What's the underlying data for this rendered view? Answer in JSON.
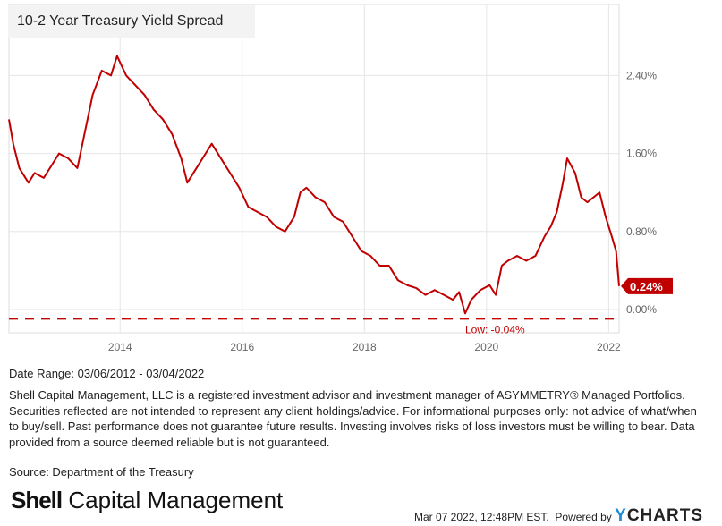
{
  "chart_data": {
    "type": "line",
    "title": "10-2 Year Treasury Yield Spread",
    "x_ticks": [
      "2014",
      "2016",
      "2018",
      "2020",
      "2022"
    ],
    "y_ticks": [
      "0.00%",
      "0.80%",
      "1.60%",
      "2.40%"
    ],
    "ylim": [
      -0.2,
      3.1
    ],
    "xlim": [
      2012.18,
      2022.17
    ],
    "grid": true,
    "series": [
      {
        "color": "#c00000",
        "x": [
          2012.18,
          2012.25,
          2012.35,
          2012.5,
          2012.6,
          2012.75,
          2012.9,
          2013.0,
          2013.15,
          2013.3,
          2013.45,
          2013.55,
          2013.7,
          2013.85,
          2013.95,
          2014.1,
          2014.25,
          2014.4,
          2014.55,
          2014.7,
          2014.85,
          2015.0,
          2015.1,
          2015.25,
          2015.4,
          2015.5,
          2015.65,
          2015.8,
          2015.95,
          2016.1,
          2016.25,
          2016.4,
          2016.55,
          2016.7,
          2016.85,
          2016.95,
          2017.05,
          2017.2,
          2017.35,
          2017.5,
          2017.65,
          2017.8,
          2017.95,
          2018.1,
          2018.25,
          2018.4,
          2018.55,
          2018.7,
          2018.85,
          2019.0,
          2019.15,
          2019.3,
          2019.45,
          2019.55,
          2019.65,
          2019.75,
          2019.9,
          2020.05,
          2020.15,
          2020.25,
          2020.35,
          2020.5,
          2020.65,
          2020.8,
          2020.95,
          2021.05,
          2021.15,
          2021.25,
          2021.32,
          2021.45,
          2021.55,
          2021.65,
          2021.75,
          2021.85,
          2021.95,
          2022.05,
          2022.12,
          2022.17
        ],
        "y": [
          1.95,
          1.7,
          1.45,
          1.3,
          1.4,
          1.35,
          1.5,
          1.6,
          1.55,
          1.45,
          1.9,
          2.2,
          2.45,
          2.4,
          2.6,
          2.4,
          2.3,
          2.2,
          2.05,
          1.95,
          1.8,
          1.55,
          1.3,
          1.45,
          1.6,
          1.7,
          1.55,
          1.4,
          1.25,
          1.05,
          1.0,
          0.95,
          0.85,
          0.8,
          0.95,
          1.2,
          1.25,
          1.15,
          1.1,
          0.95,
          0.9,
          0.75,
          0.6,
          0.55,
          0.45,
          0.45,
          0.3,
          0.25,
          0.22,
          0.15,
          0.2,
          0.15,
          0.1,
          0.18,
          -0.04,
          0.1,
          0.2,
          0.25,
          0.15,
          0.45,
          0.5,
          0.55,
          0.5,
          0.55,
          0.75,
          0.85,
          1.0,
          1.3,
          1.55,
          1.4,
          1.15,
          1.1,
          1.15,
          1.2,
          0.95,
          0.75,
          0.6,
          0.24
        ]
      }
    ],
    "last_value_label": "0.24%",
    "low_value": -0.04,
    "low_label": "Low: -0.04%"
  },
  "date_range": "Date Range: 03/06/2012 - 03/04/2022",
  "disclaimer": "Shell Capital Management, LLC is a registered investment advisor and investment manager of ASYMMETRY® Managed Portfolios. Securities reflected are not intended to represent any client holdings/advice. For informational purposes only: not advice of what/when to buy/sell. Past performance does not guarantee future results. Investing involves risks of loss investors must be willing to bear. Data provided from a source deemed reliable but is not guaranteed.",
  "source": "Source: Department of the Treasury",
  "logo": {
    "bold": "Shell",
    "rest": " Capital Management"
  },
  "timestamp": "Mar 07 2022, 12:48PM EST.",
  "powered_by": "Powered by",
  "ycharts": {
    "y": "Y",
    "rest": "CHARTS"
  }
}
